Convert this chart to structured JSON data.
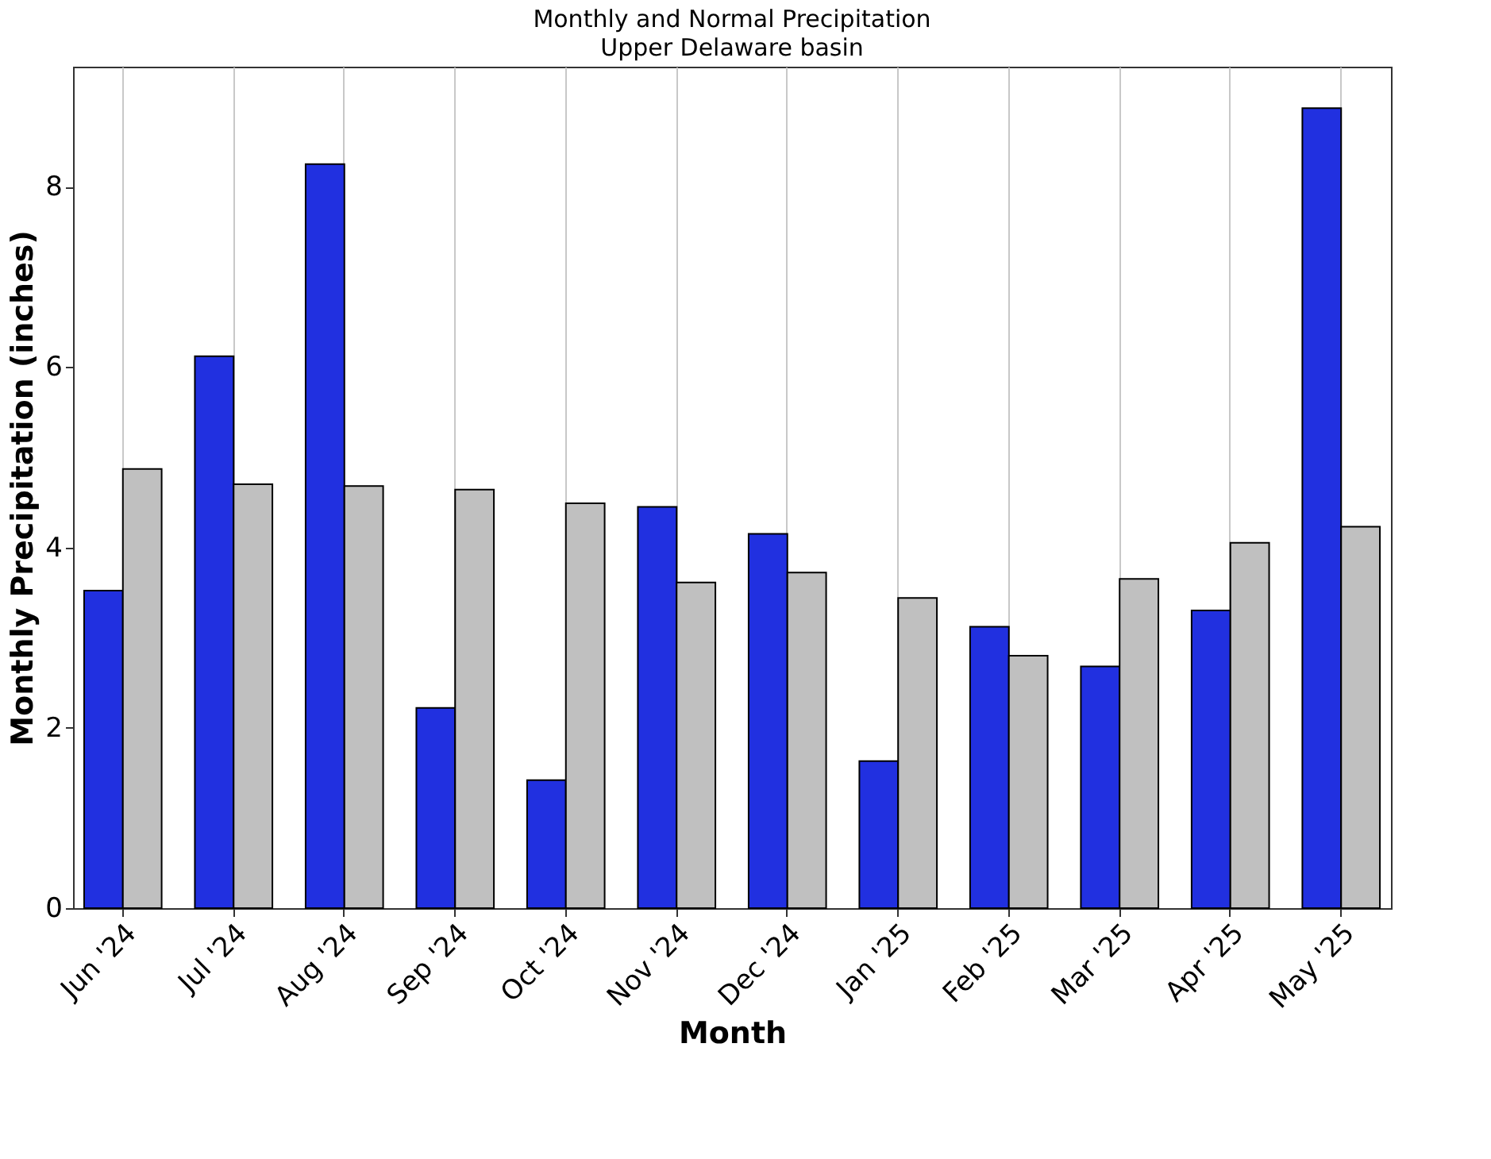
{
  "chart_data": {
    "type": "bar",
    "title": "Monthly and Normal Precipitation",
    "subtitle": "Upper Delaware basin",
    "xlabel": "Month",
    "ylabel": "Monthly Precipitation (inches)",
    "categories": [
      "Jun '24",
      "Jul '24",
      "Aug '24",
      "Sep '24",
      "Oct '24",
      "Nov '24",
      "Dec '24",
      "Jan '25",
      "Feb '25",
      "Mar '25",
      "Apr '25",
      "May '25"
    ],
    "series": [
      {
        "color": "#2130e0",
        "values": [
          3.52,
          6.12,
          8.25,
          2.22,
          1.42,
          4.45,
          4.15,
          1.63,
          3.12,
          2.68,
          3.3,
          8.87
        ]
      },
      {
        "color": "#c0c0c0",
        "values": [
          4.87,
          4.7,
          4.68,
          4.64,
          4.49,
          3.61,
          3.72,
          3.44,
          2.8,
          3.65,
          4.05,
          4.23
        ]
      }
    ],
    "ylim": [
      0,
      9.33
    ],
    "yticks": [
      0,
      2,
      4,
      6,
      8
    ],
    "grid": "x",
    "legend": false
  }
}
